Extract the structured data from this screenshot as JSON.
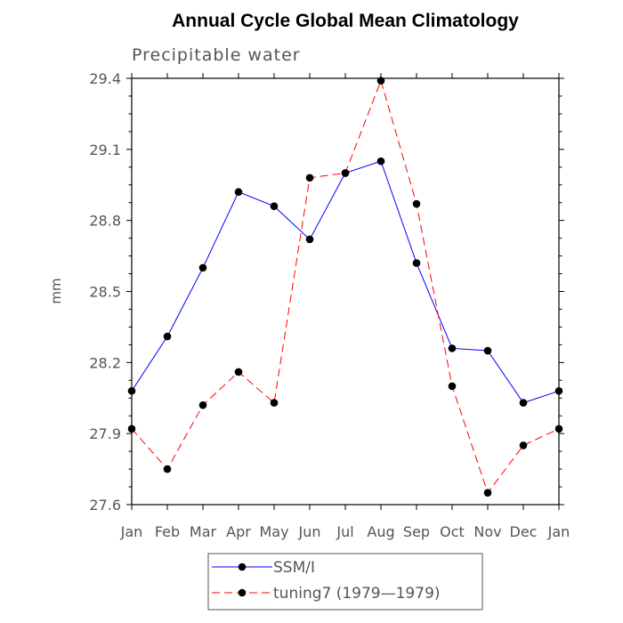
{
  "chart_data": {
    "type": "line",
    "title": "Annual Cycle Global Mean Climatology",
    "subtitle": "Precipitable water",
    "xlabel": "",
    "ylabel": "mm",
    "categories": [
      "Jan",
      "Feb",
      "Mar",
      "Apr",
      "May",
      "Jun",
      "Jul",
      "Aug",
      "Sep",
      "Oct",
      "Nov",
      "Dec",
      "Jan"
    ],
    "ylim": [
      27.6,
      29.4
    ],
    "yticks": [
      "27.6",
      "27.9",
      "28.2",
      "28.5",
      "28.8",
      "29.1",
      "29.4"
    ],
    "grid": false,
    "legend_position": "bottom-center",
    "series": [
      {
        "name": "SSM/I",
        "color": "#0000ff",
        "line_style": "solid",
        "values": [
          28.08,
          28.31,
          28.6,
          28.92,
          28.86,
          28.72,
          29.0,
          29.05,
          28.62,
          28.26,
          28.25,
          28.03,
          28.08
        ]
      },
      {
        "name": "tuning7 (1979—1979)",
        "color": "#ff0000",
        "line_style": "dashed",
        "values": [
          27.92,
          27.75,
          28.02,
          28.16,
          28.03,
          28.98,
          29.0,
          29.39,
          28.87,
          28.1,
          27.65,
          27.85,
          27.92
        ]
      }
    ]
  }
}
